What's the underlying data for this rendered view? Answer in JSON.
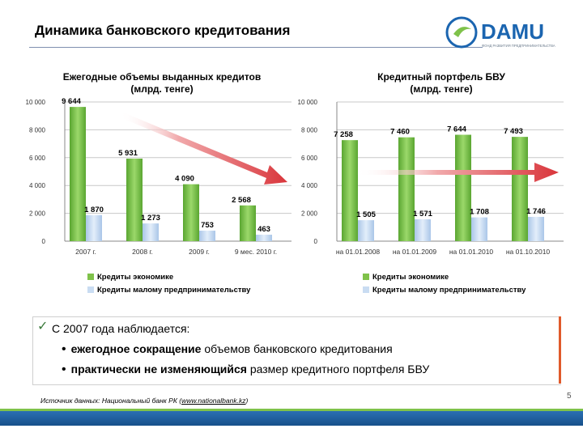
{
  "page": {
    "title": "Динамика банковского кредитования",
    "page_number": "5",
    "logo_text": "DAMU",
    "logo_subtitle": "ФОНД РАЗВИТИЯ ПРЕДПРИНИМАТЕЛЬСТВА",
    "colors": {
      "green": "#7fc24a",
      "blue": "#c9dcf2",
      "arrow": "#d9353b",
      "brand": "#1b65b0"
    }
  },
  "summary": {
    "lead": "С 2007 года наблюдается:",
    "bullets": [
      {
        "bold": "ежегодное сокращение",
        "rest": " объемов банковского кредитования"
      },
      {
        "bold": "практически не изменяющийся",
        "rest": " размер кредитного портфеля БВУ"
      }
    ],
    "source_prefix": "Источник данных: Национальный банк РК (",
    "source_link": "www.nationalbank.kz",
    "source_suffix": ")"
  },
  "chart_data": [
    {
      "type": "bar",
      "title": "Ежегодные объемы выданных кредитов\n(млрд. тенге)",
      "categories": [
        "2007 г.",
        "2008 г.",
        "2009 г.",
        "9 мес. 2010 г."
      ],
      "series": [
        {
          "name": "Кредиты экономике",
          "values": [
            9644,
            5931,
            4090,
            2568
          ],
          "labels": [
            "9 644",
            "5 931",
            "4 090",
            "2 568"
          ]
        },
        {
          "name": "Кредиты малому предпринимательству",
          "values": [
            1870,
            1273,
            753,
            463
          ],
          "labels": [
            "1 870",
            "1 273",
            "753",
            "463"
          ]
        }
      ],
      "ylim": [
        0,
        10000
      ],
      "yticks": [
        "0",
        "2 000",
        "4 000",
        "6 000",
        "8 000",
        "10 000"
      ],
      "trend_arrow": "down"
    },
    {
      "type": "bar",
      "title": "Кредитный портфель БВУ\n(млрд. тенге)",
      "categories": [
        "на 01.01.2008",
        "на 01.01.2009",
        "на 01.01.2010",
        "на 01.10.2010"
      ],
      "series": [
        {
          "name": "Кредиты экономике",
          "values": [
            7258,
            7460,
            7644,
            7493
          ],
          "labels": [
            "7 258",
            "7 460",
            "7 644",
            "7 493"
          ]
        },
        {
          "name": "Кредиты малому предпринимательству",
          "values": [
            1505,
            1571,
            1708,
            1746
          ],
          "labels": [
            "1 505",
            "1 571",
            "1 708",
            "1 746"
          ]
        }
      ],
      "ylim": [
        0,
        10000
      ],
      "yticks": [
        "0",
        "2 000",
        "4 000",
        "6 000",
        "8 000",
        "10 000"
      ],
      "trend_arrow": "flat"
    }
  ]
}
